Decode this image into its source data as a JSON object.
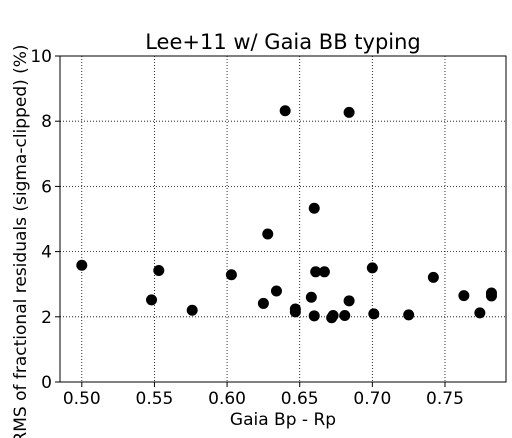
{
  "chart_data": {
    "type": "scatter",
    "title": "Lee+11 w/ Gaia BB typing",
    "xlabel": "Gaia Bp - Rp",
    "ylabel": "RMS of fractional residuals (sigma-clipped) (%)",
    "xlim": [
      0.485,
      0.792
    ],
    "ylim": [
      0,
      10
    ],
    "xticks": [
      0.5,
      0.55,
      0.6,
      0.65,
      0.7,
      0.75
    ],
    "xtick_labels": [
      "0.50",
      "0.55",
      "0.60",
      "0.65",
      "0.70",
      "0.75"
    ],
    "yticks": [
      0,
      2,
      4,
      6,
      8,
      10
    ],
    "ytick_labels": [
      "0",
      "2",
      "4",
      "6",
      "8",
      "10"
    ],
    "grid": true,
    "grid_style": "dotted",
    "marker_color": "#000000",
    "series": [
      {
        "points": [
          [
            0.5,
            3.58
          ],
          [
            0.548,
            2.52
          ],
          [
            0.553,
            3.42
          ],
          [
            0.576,
            2.2
          ],
          [
            0.603,
            3.29
          ],
          [
            0.625,
            2.41
          ],
          [
            0.628,
            4.54
          ],
          [
            0.634,
            2.79
          ],
          [
            0.64,
            8.32
          ],
          [
            0.647,
            2.15
          ],
          [
            0.647,
            2.24
          ],
          [
            0.658,
            2.6
          ],
          [
            0.66,
            5.33
          ],
          [
            0.66,
            2.03
          ],
          [
            0.661,
            3.38
          ],
          [
            0.667,
            3.38
          ],
          [
            0.672,
            1.97
          ],
          [
            0.673,
            2.04
          ],
          [
            0.681,
            2.04
          ],
          [
            0.684,
            2.49
          ],
          [
            0.684,
            8.27
          ],
          [
            0.7,
            3.5
          ],
          [
            0.701,
            2.09
          ],
          [
            0.725,
            2.06
          ],
          [
            0.742,
            3.21
          ],
          [
            0.763,
            2.65
          ],
          [
            0.774,
            2.12
          ],
          [
            0.782,
            2.64
          ],
          [
            0.782,
            2.73
          ]
        ]
      }
    ]
  }
}
